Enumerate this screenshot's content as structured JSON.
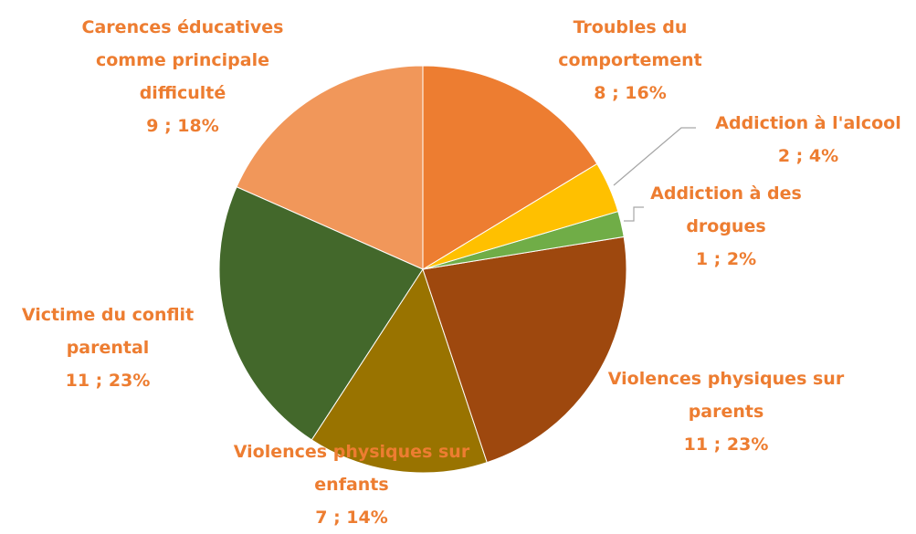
{
  "chart_data": {
    "type": "pie",
    "categories": [
      "Troubles du comportement",
      "Addiction à l'alcool",
      "Addiction à des drogues",
      "Violences physiques sur parents",
      "Violences physiques sur enfants",
      "Victime du conflit parental",
      "Carences éducatives comme principale difficulté"
    ],
    "values": [
      8,
      2,
      1,
      11,
      7,
      11,
      9
    ],
    "value_labels": [
      "8 ; 16%",
      "2 ; 4%",
      "1 ; 2%",
      "11 ; 23%",
      "7 ; 14%",
      "11 ; 23%",
      "9 ; 18%"
    ],
    "colors": [
      "#ED7D31",
      "#FFC000",
      "#70AD47",
      "#9E480E",
      "#997300",
      "#43682B",
      "#F1975A"
    ]
  }
}
